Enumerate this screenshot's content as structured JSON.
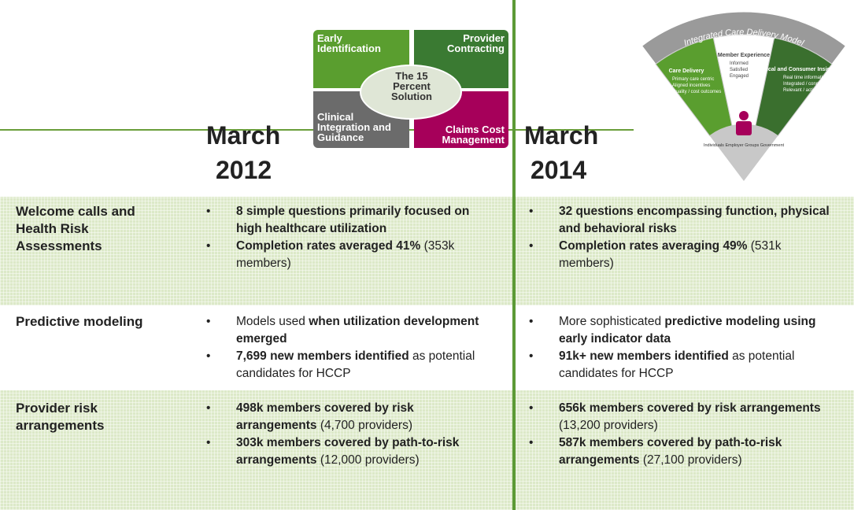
{
  "headers": {
    "left": [
      "March",
      "2012"
    ],
    "right": [
      "March",
      "2014"
    ]
  },
  "puzzle": {
    "quadrants": [
      "Early Identification",
      "Provider Contracting",
      "Clinical Integration and Guidance",
      "Claims Cost Management"
    ],
    "center": "The 15 Percent Solution"
  },
  "model": {
    "title": "Integrated Care Delivery Model",
    "segments": [
      {
        "heading": "Care Delivery",
        "items": [
          "Primary care centric",
          "Aligned incentives",
          "Quality / cost outcomes"
        ]
      },
      {
        "heading": "Member Experience",
        "items": [
          "Informed",
          "Satisfied",
          "Engaged"
        ]
      },
      {
        "heading": "Clinical and Consumer Insights",
        "items": [
          "Real time information",
          "Integrated / connected",
          "Relevant / actionable"
        ]
      }
    ],
    "center": "Individuals Employer Groups Government"
  },
  "rows": [
    {
      "label": "Welcome calls and Health Risk Assessments",
      "before": [
        [
          {
            "text": "8 simple questions primarily focused on high healthcare utilization",
            "bold": true
          }
        ],
        [
          {
            "text": "Completion rates averaged 41%",
            "bold": true
          },
          {
            "text": " (353k members)",
            "bold": false
          }
        ]
      ],
      "after": [
        [
          {
            "text": "32 questions encompassing function, physical and behavioral risks",
            "bold": true
          }
        ],
        [
          {
            "text": "Completion rates averaging 49%",
            "bold": true
          },
          {
            "text": " (531k members)",
            "bold": false
          }
        ]
      ]
    },
    {
      "label": "Predictive modeling",
      "before": [
        [
          {
            "text": "Models used ",
            "bold": false
          },
          {
            "text": "when utilization development emerged",
            "bold": true
          }
        ],
        [
          {
            "text": "7,699  new members identified",
            "bold": true
          },
          {
            "text": " as potential candidates for HCCP",
            "bold": false
          }
        ]
      ],
      "after": [
        [
          {
            "text": "More sophisticated ",
            "bold": false
          },
          {
            "text": "predictive modeling using early indicator data",
            "bold": true
          }
        ],
        [
          {
            "text": "91k+ new members identified",
            "bold": true
          },
          {
            "text": " as potential candidates for HCCP",
            "bold": false
          }
        ]
      ]
    },
    {
      "label": "Provider risk arrangements",
      "before": [
        [
          {
            "text": "498k members covered by risk arrangements",
            "bold": true
          },
          {
            "text": " (4,700 providers)",
            "bold": false
          }
        ],
        [
          {
            "text": "303k members covered by path-to-risk arrangements",
            "bold": true
          },
          {
            "text": " (12,000 providers)",
            "bold": false
          }
        ]
      ],
      "after": [
        [
          {
            "text": "656k members covered by risk arrangements",
            "bold": true
          },
          {
            "text": " (13,200 providers)",
            "bold": false
          }
        ],
        [
          {
            "text": "587k members covered by path-to-risk arrangements",
            "bold": true
          },
          {
            "text": " (27,100 providers)",
            "bold": false
          }
        ]
      ]
    }
  ]
}
